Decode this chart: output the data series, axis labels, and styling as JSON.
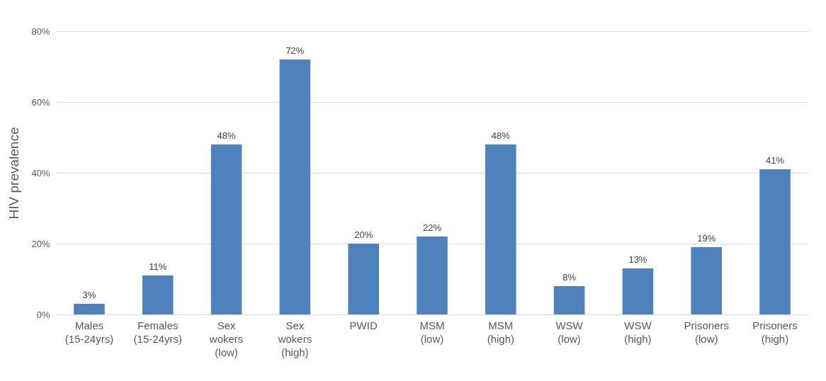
{
  "chart_data": {
    "type": "bar",
    "ylabel": "HIV prevalence",
    "categories": [
      "Males (15-24yrs)",
      "Females (15-24yrs)",
      "Sex wokers (low)",
      "Sex wokers (high)",
      "PWID",
      "MSM (low)",
      "MSM (high)",
      "WSW (low)",
      "WSW (high)",
      "Prisoners (low)",
      "Prisoners (high)"
    ],
    "values": [
      3,
      11,
      48,
      72,
      20,
      22,
      48,
      8,
      13,
      19,
      41
    ],
    "value_labels": [
      "3%",
      "11%",
      "48%",
      "72%",
      "20%",
      "22%",
      "48%",
      "8%",
      "13%",
      "19%",
      "41%"
    ],
    "color": "#4f81bd",
    "ylim": [
      0,
      80
    ],
    "yticks": [
      {
        "value": 0,
        "label": "0%"
      },
      {
        "value": 20,
        "label": "20%"
      },
      {
        "value": 40,
        "label": "40%"
      },
      {
        "value": 60,
        "label": "60%"
      },
      {
        "value": 80,
        "label": "80%"
      }
    ],
    "grid": "y"
  }
}
